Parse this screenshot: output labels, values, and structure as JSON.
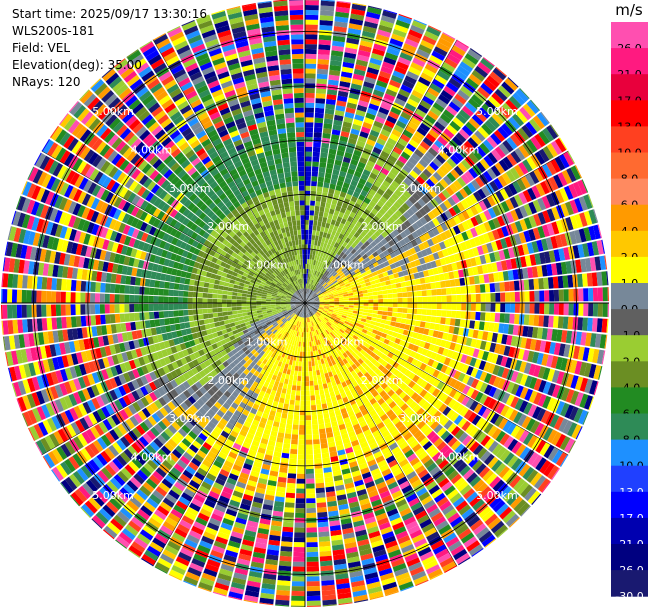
{
  "header": {
    "start_time": "Start time: 2025/09/17 13:30:16",
    "instrument": "WLS200s-181",
    "field": "Field: VEL",
    "elevation": "Elevation(deg): 35.00",
    "nrays": "NRays: 120"
  },
  "colorbar": {
    "unit": "m/s",
    "ticks": [
      "26.0",
      "21.0",
      "17.0",
      "13.0",
      "10.0",
      "8.0",
      "6.0",
      "4.0",
      "2.0",
      "1.0",
      "0.0",
      "-1.0",
      "-2.0",
      "-4.0",
      "-6.0",
      "-8.0",
      "-10.0",
      "-13.0",
      "-17.0",
      "-21.0",
      "-26.0",
      "-30.0"
    ],
    "colors": [
      "#ff4fb0",
      "#ff1a80",
      "#e8003c",
      "#ff0000",
      "#ff4020",
      "#ff6a30",
      "#ff8a60",
      "#ff9a00",
      "#ffc800",
      "#ffff00",
      "#778899",
      "#606060",
      "#9acd32",
      "#6b8e23",
      "#228b22",
      "#2e8b57",
      "#1e90ff",
      "#2040ff",
      "#0000ff",
      "#0000b0",
      "#000080",
      "#191970"
    ]
  },
  "range_labels": {
    "ring1": "1.00km",
    "ring2": "2.00km",
    "ring3": "3.00km",
    "ring4": "4.00km",
    "ring5": "5.00km"
  },
  "plot": {
    "type": "ppi",
    "max_range_km": 5.6,
    "ring_km": [
      1,
      2,
      3,
      4,
      5
    ],
    "nrays": 120
  }
}
